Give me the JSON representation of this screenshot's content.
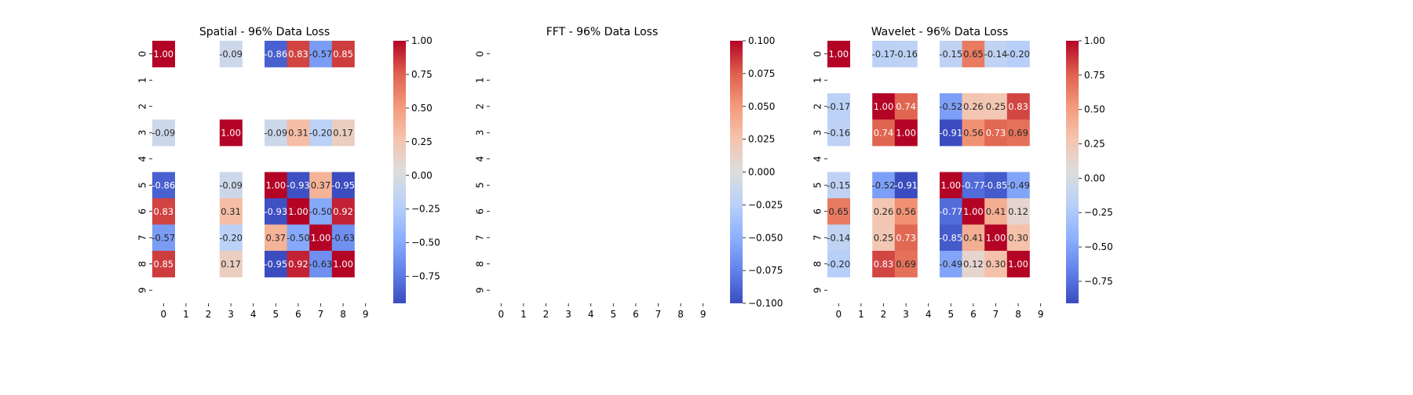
{
  "chart_data": [
    {
      "type": "heatmap",
      "title": "Spatial - 96% Data Loss",
      "x_labels": [
        "0",
        "1",
        "2",
        "3",
        "4",
        "5",
        "6",
        "7",
        "8",
        "9"
      ],
      "y_labels": [
        "0",
        "1",
        "2",
        "3",
        "4",
        "5",
        "6",
        "7",
        "8",
        "9"
      ],
      "values": [
        [
          1.0,
          null,
          null,
          -0.09,
          null,
          -0.86,
          0.83,
          -0.57,
          0.85,
          null
        ],
        [
          null,
          null,
          null,
          null,
          null,
          null,
          null,
          null,
          null,
          null
        ],
        [
          null,
          null,
          null,
          null,
          null,
          null,
          null,
          null,
          null,
          null
        ],
        [
          -0.09,
          null,
          null,
          1.0,
          null,
          -0.09,
          0.31,
          -0.2,
          0.17,
          null
        ],
        [
          null,
          null,
          null,
          null,
          null,
          null,
          null,
          null,
          null,
          null
        ],
        [
          -0.86,
          null,
          null,
          -0.09,
          null,
          1.0,
          -0.93,
          0.37,
          -0.95,
          null
        ],
        [
          0.83,
          null,
          null,
          0.31,
          null,
          -0.93,
          1.0,
          -0.5,
          0.92,
          null
        ],
        [
          -0.57,
          null,
          null,
          -0.2,
          null,
          0.37,
          -0.5,
          1.0,
          -0.63,
          null
        ],
        [
          0.85,
          null,
          null,
          0.17,
          null,
          -0.95,
          0.92,
          -0.63,
          1.0,
          null
        ],
        [
          null,
          null,
          null,
          null,
          null,
          null,
          null,
          null,
          null,
          null
        ]
      ],
      "colormap": "coolwarm",
      "vmin": -0.95,
      "vmax": 1.0,
      "colorbar_ticks": [
        -0.75,
        -0.5,
        -0.25,
        0.0,
        0.25,
        0.5,
        0.75,
        1.0
      ],
      "colorbar_labels": [
        "−0.75",
        "−0.50",
        "−0.25",
        "0.00",
        "0.25",
        "0.50",
        "0.75",
        "1.00"
      ],
      "annotation_format": "2 decimals"
    },
    {
      "type": "heatmap",
      "title": "FFT - 96% Data Loss",
      "x_labels": [
        "0",
        "1",
        "2",
        "3",
        "4",
        "5",
        "6",
        "7",
        "8",
        "9"
      ],
      "y_labels": [
        "0",
        "1",
        "2",
        "3",
        "4",
        "5",
        "6",
        "7",
        "8",
        "9"
      ],
      "values": [
        [
          null,
          null,
          null,
          null,
          null,
          null,
          null,
          null,
          null,
          null
        ],
        [
          null,
          null,
          null,
          null,
          null,
          null,
          null,
          null,
          null,
          null
        ],
        [
          null,
          null,
          null,
          null,
          null,
          null,
          null,
          null,
          null,
          null
        ],
        [
          null,
          null,
          null,
          null,
          null,
          null,
          null,
          null,
          null,
          null
        ],
        [
          null,
          null,
          null,
          null,
          null,
          null,
          null,
          null,
          null,
          null
        ],
        [
          null,
          null,
          null,
          null,
          null,
          null,
          null,
          null,
          null,
          null
        ],
        [
          null,
          null,
          null,
          null,
          null,
          null,
          null,
          null,
          null,
          null
        ],
        [
          null,
          null,
          null,
          null,
          null,
          null,
          null,
          null,
          null,
          null
        ],
        [
          null,
          null,
          null,
          null,
          null,
          null,
          null,
          null,
          null,
          null
        ],
        [
          null,
          null,
          null,
          null,
          null,
          null,
          null,
          null,
          null,
          null
        ]
      ],
      "colormap": "coolwarm",
      "vmin": -0.1,
      "vmax": 0.1,
      "colorbar_ticks": [
        -0.1,
        -0.075,
        -0.05,
        -0.025,
        0.0,
        0.025,
        0.05,
        0.075,
        0.1
      ],
      "colorbar_labels": [
        "−0.100",
        "−0.075",
        "−0.050",
        "−0.025",
        "0.000",
        "0.025",
        "0.050",
        "0.075",
        "0.100"
      ],
      "annotation_format": "2 decimals"
    },
    {
      "type": "heatmap",
      "title": "Wavelet - 96% Data Loss",
      "x_labels": [
        "0",
        "1",
        "2",
        "3",
        "4",
        "5",
        "6",
        "7",
        "8",
        "9"
      ],
      "y_labels": [
        "0",
        "1",
        "2",
        "3",
        "4",
        "5",
        "6",
        "7",
        "8",
        "9"
      ],
      "values": [
        [
          1.0,
          null,
          -0.17,
          -0.16,
          null,
          -0.15,
          0.65,
          -0.14,
          -0.2,
          null
        ],
        [
          null,
          null,
          null,
          null,
          null,
          null,
          null,
          null,
          null,
          null
        ],
        [
          -0.17,
          null,
          1.0,
          0.74,
          null,
          -0.52,
          0.26,
          0.25,
          0.83,
          null
        ],
        [
          -0.16,
          null,
          0.74,
          1.0,
          null,
          -0.91,
          0.56,
          0.73,
          0.69,
          null
        ],
        [
          null,
          null,
          null,
          null,
          null,
          null,
          null,
          null,
          null,
          null
        ],
        [
          -0.15,
          null,
          -0.52,
          -0.91,
          null,
          1.0,
          -0.77,
          -0.85,
          -0.49,
          null
        ],
        [
          0.65,
          null,
          0.26,
          0.56,
          null,
          -0.77,
          1.0,
          0.41,
          0.12,
          null
        ],
        [
          -0.14,
          null,
          0.25,
          0.73,
          null,
          -0.85,
          0.41,
          1.0,
          0.3,
          null
        ],
        [
          -0.2,
          null,
          0.83,
          0.69,
          null,
          -0.49,
          0.12,
          0.3,
          1.0,
          null
        ],
        [
          null,
          null,
          null,
          null,
          null,
          null,
          null,
          null,
          null,
          null
        ]
      ],
      "colormap": "coolwarm",
      "vmin": -0.91,
      "vmax": 1.0,
      "colorbar_ticks": [
        -0.75,
        -0.5,
        -0.25,
        0.0,
        0.25,
        0.5,
        0.75,
        1.0
      ],
      "colorbar_labels": [
        "−0.75",
        "−0.50",
        "−0.25",
        "0.00",
        "0.25",
        "0.50",
        "0.75",
        "1.00"
      ],
      "annotation_format": "2 decimals"
    }
  ]
}
